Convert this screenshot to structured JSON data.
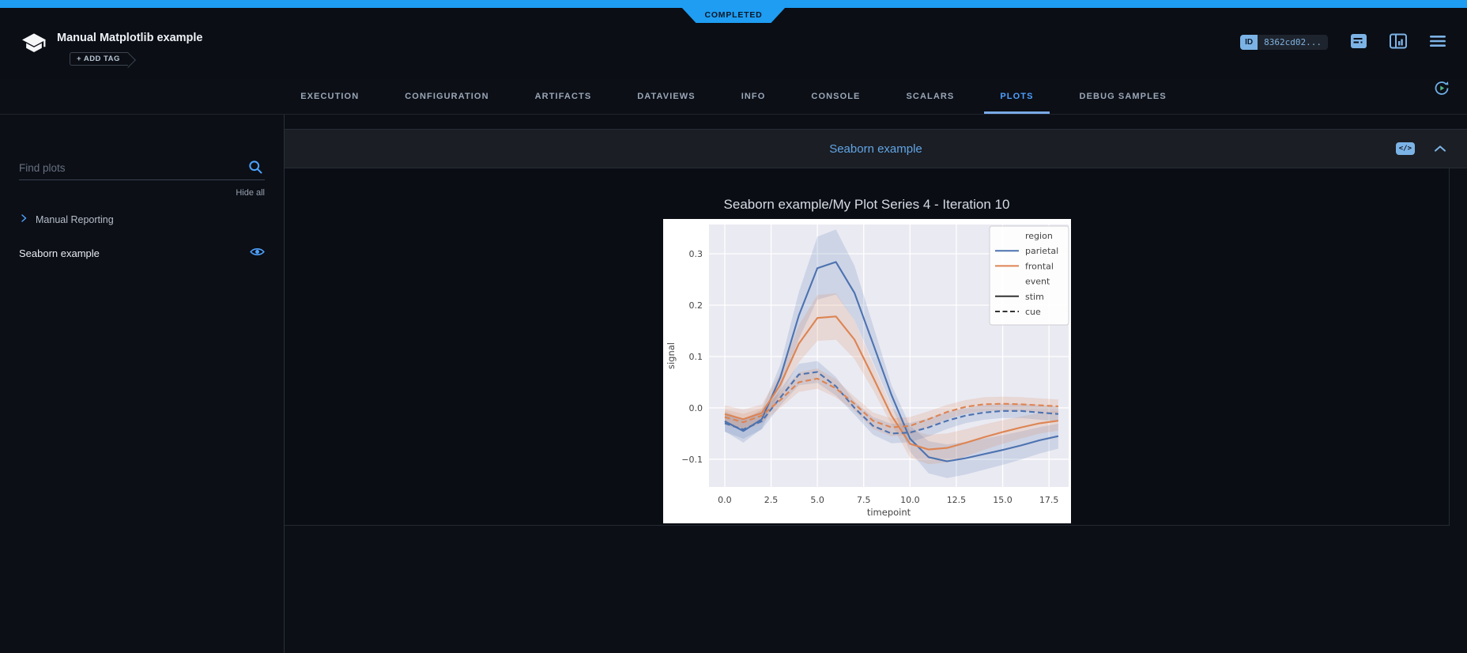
{
  "app": {
    "status_banner": "COMPLETED",
    "title": "Manual Matplotlib example",
    "add_tag_label": "+ ADD TAG",
    "id_label": "ID",
    "id_value": "8362cd02...",
    "accent_blue": "#1e9df2"
  },
  "tabs": {
    "items": [
      {
        "label": "EXECUTION",
        "active": false
      },
      {
        "label": "CONFIGURATION",
        "active": false
      },
      {
        "label": "ARTIFACTS",
        "active": false
      },
      {
        "label": "DATAVIEWS",
        "active": false
      },
      {
        "label": "INFO",
        "active": false
      },
      {
        "label": "CONSOLE",
        "active": false
      },
      {
        "label": "SCALARS",
        "active": false
      },
      {
        "label": "PLOTS",
        "active": true
      },
      {
        "label": "DEBUG SAMPLES",
        "active": false
      }
    ]
  },
  "sidebar": {
    "search_placeholder": "Find plots",
    "hide_all_label": "Hide all",
    "group_label": "Manual Reporting",
    "items": [
      {
        "label": "Seaborn example",
        "visible": true
      }
    ]
  },
  "plot_section": {
    "title": "Seaborn example"
  },
  "chart_data": {
    "type": "line",
    "title": "Seaborn example/My Plot Series 4 - Iteration 10",
    "xlabel": "timepoint",
    "ylabel": "signal",
    "xlim": [
      -0.85,
      18.56
    ],
    "ylim": [
      -0.154,
      0.357
    ],
    "xticks": [
      0.0,
      2.5,
      5.0,
      7.5,
      10.0,
      12.5,
      15.0,
      17.5
    ],
    "yticks": [
      0.3,
      0.2,
      0.1,
      0.0,
      -0.1
    ],
    "grid": true,
    "plot_background": "#eaeaf2",
    "x": [
      0,
      1,
      2,
      3,
      4,
      5,
      6,
      7,
      8,
      9,
      10,
      11,
      12,
      13,
      14,
      15,
      16,
      17,
      18
    ],
    "series": [
      {
        "name": "parietal-stim",
        "legend_label": "parietal",
        "color": "#4c72b0",
        "dashed": false,
        "band": [
          0.015,
          0.17
        ],
        "values": [
          -0.026,
          -0.045,
          -0.022,
          0.059,
          0.18,
          0.272,
          0.284,
          0.224,
          0.125,
          0.025,
          -0.06,
          -0.096,
          -0.104,
          -0.098,
          -0.09,
          -0.082,
          -0.073,
          -0.063,
          -0.055
        ]
      },
      {
        "name": "frontal-stim",
        "legend_label": "frontal",
        "color": "#dd8452",
        "dashed": false,
        "band": [
          0.015,
          0.17
        ],
        "values": [
          -0.012,
          -0.022,
          -0.01,
          0.045,
          0.125,
          0.175,
          0.178,
          0.133,
          0.06,
          -0.015,
          -0.07,
          -0.081,
          -0.078,
          -0.068,
          -0.057,
          -0.047,
          -0.038,
          -0.03,
          -0.025
        ]
      },
      {
        "name": "parietal-cue",
        "legend_label": "parietal",
        "color": "#4c72b0",
        "dashed": true,
        "band": [
          0.013,
          0.12
        ],
        "values": [
          -0.03,
          -0.042,
          -0.026,
          0.02,
          0.065,
          0.07,
          0.042,
          0.0,
          -0.035,
          -0.05,
          -0.048,
          -0.038,
          -0.025,
          -0.015,
          -0.009,
          -0.006,
          -0.006,
          -0.009,
          -0.012
        ]
      },
      {
        "name": "frontal-cue",
        "legend_label": "frontal",
        "color": "#dd8452",
        "dashed": true,
        "band": [
          0.013,
          0.12
        ],
        "values": [
          -0.018,
          -0.028,
          -0.015,
          0.015,
          0.05,
          0.057,
          0.038,
          0.008,
          -0.025,
          -0.038,
          -0.035,
          -0.022,
          -0.008,
          0.002,
          0.007,
          0.008,
          0.007,
          0.005,
          0.003
        ]
      }
    ],
    "legend": {
      "position": "upper right",
      "entries": [
        {
          "label": "region",
          "type": "header"
        },
        {
          "label": "parietal",
          "type": "solid",
          "color": "#4c72b0"
        },
        {
          "label": "frontal",
          "type": "solid",
          "color": "#dd8452"
        },
        {
          "label": "event",
          "type": "header"
        },
        {
          "label": "stim",
          "type": "solid",
          "color": "#333333"
        },
        {
          "label": "cue",
          "type": "dashed",
          "color": "#333333"
        }
      ]
    }
  }
}
